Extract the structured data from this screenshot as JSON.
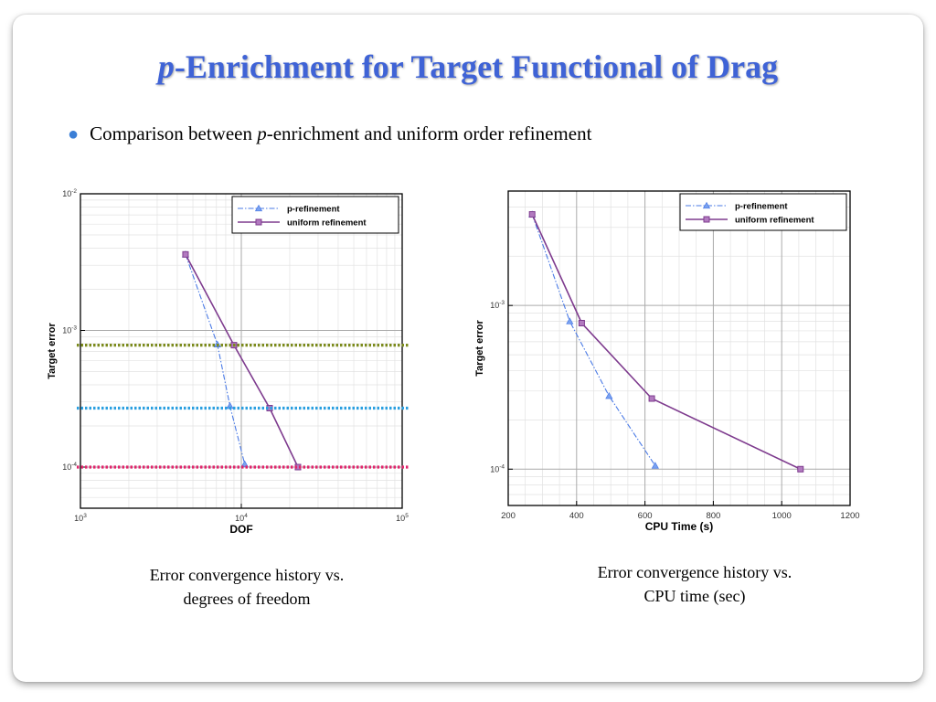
{
  "slide": {
    "title_p": "p",
    "title_rest": "-Enrichment for Target Functional of Drag",
    "bullet_pre": "Comparison between ",
    "bullet_p": "p",
    "bullet_post": "-enrichment and uniform order refinement",
    "caption_left": [
      "Error convergence history vs.",
      "degrees of freedom"
    ],
    "caption_right": [
      "Error convergence history vs.",
      "CPU time (sec)"
    ],
    "colors": {
      "title": "#3f63d6",
      "bullet": "#3b7fd6"
    }
  },
  "chart_data": [
    {
      "type": "line",
      "xlabel": "DOF",
      "ylabel": "Target error",
      "xscale": "log",
      "yscale": "log",
      "xlim": [
        1000,
        100000
      ],
      "ylim": [
        5e-05,
        0.01
      ],
      "xticks": [
        {
          "v": 1000,
          "base": "10",
          "exp": "3"
        },
        {
          "v": 10000,
          "base": "10",
          "exp": "4"
        },
        {
          "v": 100000,
          "base": "10",
          "exp": "5"
        }
      ],
      "yticks": [
        {
          "v": 0.0001,
          "base": "10",
          "exp": "-4"
        },
        {
          "v": 0.001,
          "base": "10",
          "exp": "-3"
        },
        {
          "v": 0.01,
          "base": "10",
          "exp": "-2"
        }
      ],
      "legend_position": "top-right",
      "series": [
        {
          "name": "p-refinement",
          "color": "#4a7ae6",
          "style": "dashdot",
          "marker": "triangle",
          "x": [
            4500,
            7100,
            8500,
            10500
          ],
          "y": [
            0.0036,
            0.00079,
            0.00028,
            0.000105
          ]
        },
        {
          "name": "uniform refinement",
          "color": "#7e3b8e",
          "style": "solid",
          "marker": "square",
          "x": [
            4500,
            9000,
            15000,
            22500
          ],
          "y": [
            0.0036,
            0.00078,
            0.00027,
            0.0001
          ]
        }
      ],
      "reference_lines": [
        {
          "y": 0.00078,
          "color": "#7b8a1c"
        },
        {
          "y": 0.00027,
          "color": "#2a9fe0"
        },
        {
          "y": 0.0001,
          "color": "#e0246b"
        }
      ]
    },
    {
      "type": "line",
      "xlabel": "CPU Time (s)",
      "ylabel": "Target error",
      "xscale": "linear",
      "yscale": "log",
      "xlim": [
        200,
        1200
      ],
      "ylim": [
        6e-05,
        0.005
      ],
      "xticks": [
        {
          "v": 200,
          "label": "200"
        },
        {
          "v": 400,
          "label": "400"
        },
        {
          "v": 600,
          "label": "600"
        },
        {
          "v": 800,
          "label": "800"
        },
        {
          "v": 1000,
          "label": "1000"
        },
        {
          "v": 1200,
          "label": "1200"
        }
      ],
      "yticks": [
        {
          "v": 0.0001,
          "base": "10",
          "exp": "-4"
        },
        {
          "v": 0.001,
          "base": "10",
          "exp": "-3"
        }
      ],
      "legend_position": "top-right",
      "series": [
        {
          "name": "p-refinement",
          "color": "#4a7ae6",
          "style": "dashdot",
          "marker": "triangle",
          "x": [
            270,
            380,
            495,
            630
          ],
          "y": [
            0.0036,
            0.0008,
            0.00028,
            0.000105
          ]
        },
        {
          "name": "uniform refinement",
          "color": "#7e3b8e",
          "style": "solid",
          "marker": "square",
          "x": [
            270,
            415,
            620,
            1055
          ],
          "y": [
            0.0036,
            0.00078,
            0.00027,
            0.0001
          ]
        }
      ]
    }
  ]
}
